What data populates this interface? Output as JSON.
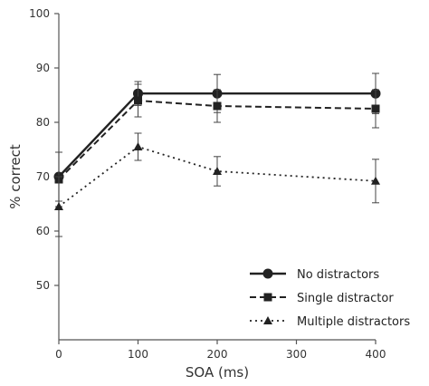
{
  "chart_data": {
    "type": "line",
    "title": "",
    "xlabel": "SOA (ms)",
    "ylabel": "% correct",
    "x": [
      0,
      100,
      200,
      400
    ],
    "xticks": [
      "0",
      "100",
      "200",
      "300",
      "400"
    ],
    "xlim": [
      0,
      400
    ],
    "yticks": [
      "50",
      "60",
      "70",
      "80",
      "90",
      "100"
    ],
    "ylim": [
      40,
      100
    ],
    "grid": false,
    "legend_position": "bottom-right",
    "series": [
      {
        "name": "No distractors",
        "marker": "circle",
        "line_style": "solid",
        "values": [
          70.0,
          85.3,
          85.3,
          85.3
        ],
        "error": [
          4.5,
          2.2,
          3.5,
          3.7
        ]
      },
      {
        "name": "Single distractor",
        "marker": "square",
        "line_style": "dashed",
        "values": [
          69.5,
          84.0,
          83.0,
          82.5
        ],
        "error": [
          5.0,
          3.0,
          3.0,
          3.5
        ]
      },
      {
        "name": "Multiple distractors",
        "marker": "triangle",
        "line_style": "dotted",
        "values": [
          64.5,
          75.5,
          71.0,
          69.2
        ],
        "error": [
          5.5,
          2.5,
          2.7,
          4.0
        ]
      }
    ]
  }
}
